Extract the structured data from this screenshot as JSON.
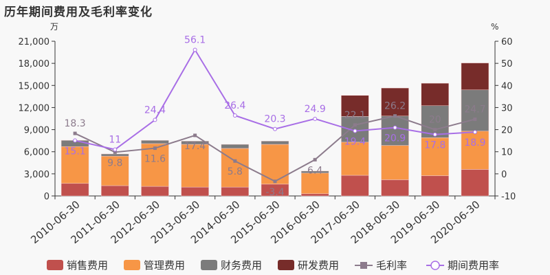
{
  "title": "历年期间费用及毛利率变化",
  "chart_data": {
    "type": "bar",
    "title": "历年期间费用及毛利率变化",
    "left_unit": "万",
    "right_unit": "%",
    "categories": [
      "2010-06-30",
      "2011-06-30",
      "2012-06-30",
      "2013-06-30",
      "2014-06-30",
      "2015-06-30",
      "2016-06-30",
      "2017-06-30",
      "2018-06-30",
      "2019-06-30",
      "2020-06-30"
    ],
    "ylim_left": [
      0,
      21000
    ],
    "yticks_left": [
      0,
      3000,
      6000,
      9000,
      12000,
      15000,
      18000,
      21000
    ],
    "ytick_labels_left": [
      "0",
      "3,000",
      "6,000",
      "9,000",
      "12,000",
      "15,000",
      "18,000",
      "21,000"
    ],
    "ylim_right": [
      -10,
      60
    ],
    "yticks_right": [
      -10,
      0,
      10,
      20,
      30,
      40,
      50,
      60
    ],
    "legend_position": "bottom",
    "grid": false,
    "bar_series": [
      {
        "name": "销售费用",
        "color": "#c0504d",
        "values": [
          1700,
          1400,
          1300,
          1200,
          1200,
          1600,
          300,
          2800,
          2200,
          2750,
          3600
        ]
      },
      {
        "name": "管理费用",
        "color": "#f79646",
        "values": [
          5000,
          4000,
          5800,
          5800,
          5250,
          5400,
          2800,
          4500,
          4650,
          5150,
          5200
        ]
      },
      {
        "name": "财务费用",
        "color": "#7b7b7b",
        "values": [
          850,
          300,
          450,
          450,
          550,
          450,
          280,
          3500,
          4000,
          4350,
          5600
        ]
      },
      {
        "name": "研发费用",
        "color": "#772c2a",
        "values": [
          0,
          0,
          0,
          0,
          0,
          0,
          0,
          2850,
          3800,
          3050,
          3650
        ]
      }
    ],
    "line_series": [
      {
        "name": "毛利率",
        "color": "#8c7b8c",
        "marker": "square",
        "axis": "right",
        "values": [
          18.3,
          9.8,
          11.6,
          17.4,
          5.8,
          -3.4,
          6.4,
          22.1,
          26.2,
          20,
          24.7
        ],
        "labels": [
          "18.3",
          "9.8",
          "11.6",
          "17.4",
          "5.8",
          "-3.4",
          "6.4",
          "22.1",
          "26.2",
          "20",
          "24.7"
        ]
      },
      {
        "name": "期间费用率",
        "color": "#a86ee6",
        "marker": "circle",
        "axis": "right",
        "values": [
          15.1,
          11,
          24.4,
          56.1,
          26.4,
          20.3,
          24.9,
          19.4,
          20.9,
          17.8,
          18.9
        ],
        "labels": [
          "15.1",
          "11",
          "24.4",
          "56.1",
          "26.4",
          "20.3",
          "24.9",
          "19.4",
          "20.9",
          "17.8",
          "18.9"
        ]
      }
    ]
  }
}
